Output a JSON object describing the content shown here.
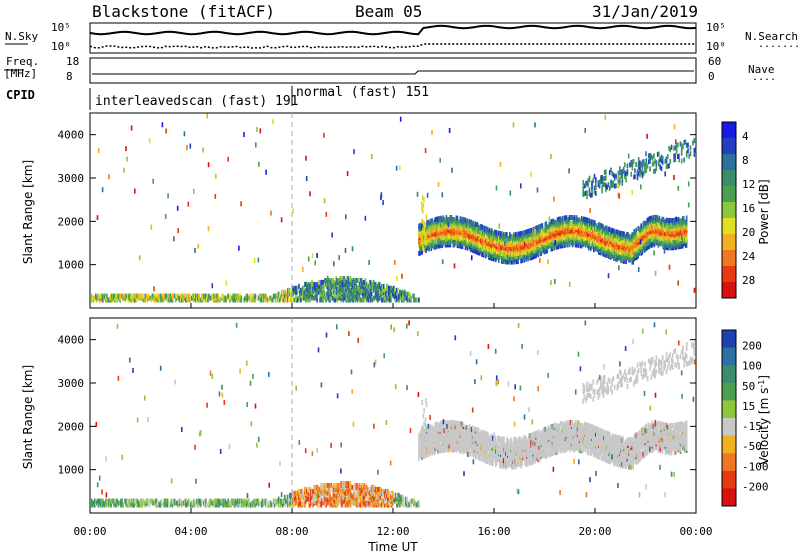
{
  "header": {
    "station": "Blackstone (fitACF)",
    "beam": "Beam 05",
    "date": "31/Jan/2019"
  },
  "status_panels": {
    "nsky_label": "N.Sky",
    "nsearch_label": "N.Search",
    "nsearch_dots": "........",
    "freq_label_1": "Freq.",
    "freq_label_2": "[MHz]",
    "nave_label": "Nave",
    "nave_dots": "....",
    "cpid_label": "CPID",
    "noise_ticks_left": [
      "10^5",
      "10^0"
    ],
    "noise_ticks_right": [
      "10^5",
      "10^0"
    ],
    "freq_ticks": [
      "18",
      "8"
    ],
    "nave_ticks": [
      "60",
      "0"
    ],
    "cpid_segments": [
      {
        "label": "interleavedscan (fast) 191",
        "start_hour": 0,
        "end_hour": 8
      },
      {
        "label": "normal (fast) 151",
        "start_hour": 8,
        "end_hour": 24
      }
    ]
  },
  "chart_data": [
    {
      "type": "heatmap",
      "name": "power",
      "xlabel": "",
      "ylabel": "Slant Range [km]",
      "x_range_hours": [
        0,
        24
      ],
      "ylim": [
        0,
        4500
      ],
      "y_ticks": [
        1000,
        2000,
        3000,
        4000
      ],
      "colorbar": {
        "label": "Power [dB]",
        "ticks": [
          "4",
          "8",
          "12",
          "16",
          "20",
          "24",
          "28"
        ],
        "colors": [
          "#1a1ae6",
          "#2040c0",
          "#2d6fa0",
          "#3a8c6a",
          "#4aa050",
          "#8cc83a",
          "#e0e020",
          "#f0b020",
          "#f07820",
          "#e63a10",
          "#d81010"
        ]
      },
      "echo_bands": [
        {
          "description": "F-region backscatter",
          "x_hours": [
            13,
            23.6
          ],
          "range_km": [
            1200,
            2100
          ],
          "peak_power_db": 28
        },
        {
          "description": "near-range ground/E echoes",
          "x_hours": [
            0,
            13
          ],
          "range_km": [
            180,
            700
          ],
          "peak_power_db": 14
        },
        {
          "description": "far-range scatter",
          "x_hours": [
            19.5,
            24
          ],
          "range_km": [
            2600,
            3800
          ],
          "peak_power_db": 12
        }
      ]
    },
    {
      "type": "heatmap",
      "name": "velocity",
      "xlabel": "Time UT",
      "ylabel": "Slant Range [km]",
      "x_range_hours": [
        0,
        24
      ],
      "x_ticks": [
        "00:00",
        "04:00",
        "08:00",
        "12:00",
        "16:00",
        "20:00",
        "00:00"
      ],
      "ylim": [
        0,
        4500
      ],
      "y_ticks": [
        1000,
        2000,
        3000,
        4000
      ],
      "colorbar": {
        "label": "Velocity [m s-1]",
        "label_main": "Velocity [m s",
        "label_sup": "-1",
        "label_tail": "]",
        "ticks": [
          "200",
          "100",
          "50",
          "15",
          "-15",
          "-50",
          "-100",
          "-200"
        ],
        "colors": [
          "#2040b0",
          "#2d6fa0",
          "#3a8c6a",
          "#4aa050",
          "#8cc83a",
          "#c8c8c8",
          "#f0b020",
          "#f07820",
          "#e63a10",
          "#d81010"
        ]
      },
      "echo_bands": [
        {
          "description": "ground scatter (grey)",
          "x_hours": [
            13,
            23.6
          ],
          "range_km": [
            1200,
            2100
          ],
          "velocity": "0"
        },
        {
          "description": "near-range echoes",
          "x_hours": [
            0,
            13
          ],
          "range_km": [
            180,
            700
          ],
          "velocity": "-50 to 50"
        }
      ]
    }
  ]
}
